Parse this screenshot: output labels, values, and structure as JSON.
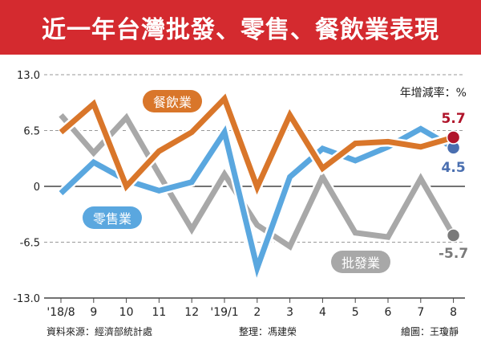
{
  "title": "近一年台灣批發、零售、餐飲業表現",
  "footer": {
    "source": "資料來源：經濟部統計處",
    "editor": "整理：馮建榮",
    "artist": "繪圖：王瓊靜"
  },
  "chart_data": {
    "type": "line",
    "title": "近一年台灣批發、零售、餐飲業表現",
    "unit_label": "年增減率：%",
    "categories": [
      "'18/8",
      "9",
      "10",
      "11",
      "12",
      "'19/1",
      "2",
      "3",
      "4",
      "5",
      "6",
      "7",
      "8"
    ],
    "ylim": [
      -13,
      13
    ],
    "yticks": [
      "13.0",
      "6.5",
      "0",
      "-6.5",
      "-13.0"
    ],
    "ytick_values": [
      13,
      6.5,
      0,
      -6.5,
      -13
    ],
    "series": [
      {
        "name": "批發業",
        "color": "#a8a8a8",
        "end_label": "-5.7",
        "end_color": "#7a7a7a",
        "values": [
          8.3,
          3.9,
          8.0,
          1.4,
          -5.0,
          1.4,
          -4.5,
          -7.0,
          1.1,
          -5.4,
          -5.9,
          0.9,
          -5.7
        ]
      },
      {
        "name": "零售業",
        "color": "#5aa7df",
        "end_label": "4.5",
        "end_color": "#4a6fb0",
        "values": [
          -0.8,
          2.8,
          0.7,
          -0.5,
          0.5,
          6.3,
          -9.5,
          1.1,
          4.4,
          3.0,
          4.6,
          6.7,
          4.5
        ]
      },
      {
        "name": "餐飲業",
        "color": "#d9762a",
        "end_label": "5.7",
        "end_color": "#b0142a",
        "values": [
          6.3,
          9.6,
          0.0,
          4.1,
          6.3,
          10.2,
          -0.1,
          8.3,
          2.1,
          5.0,
          5.2,
          4.6,
          5.7
        ]
      }
    ]
  }
}
